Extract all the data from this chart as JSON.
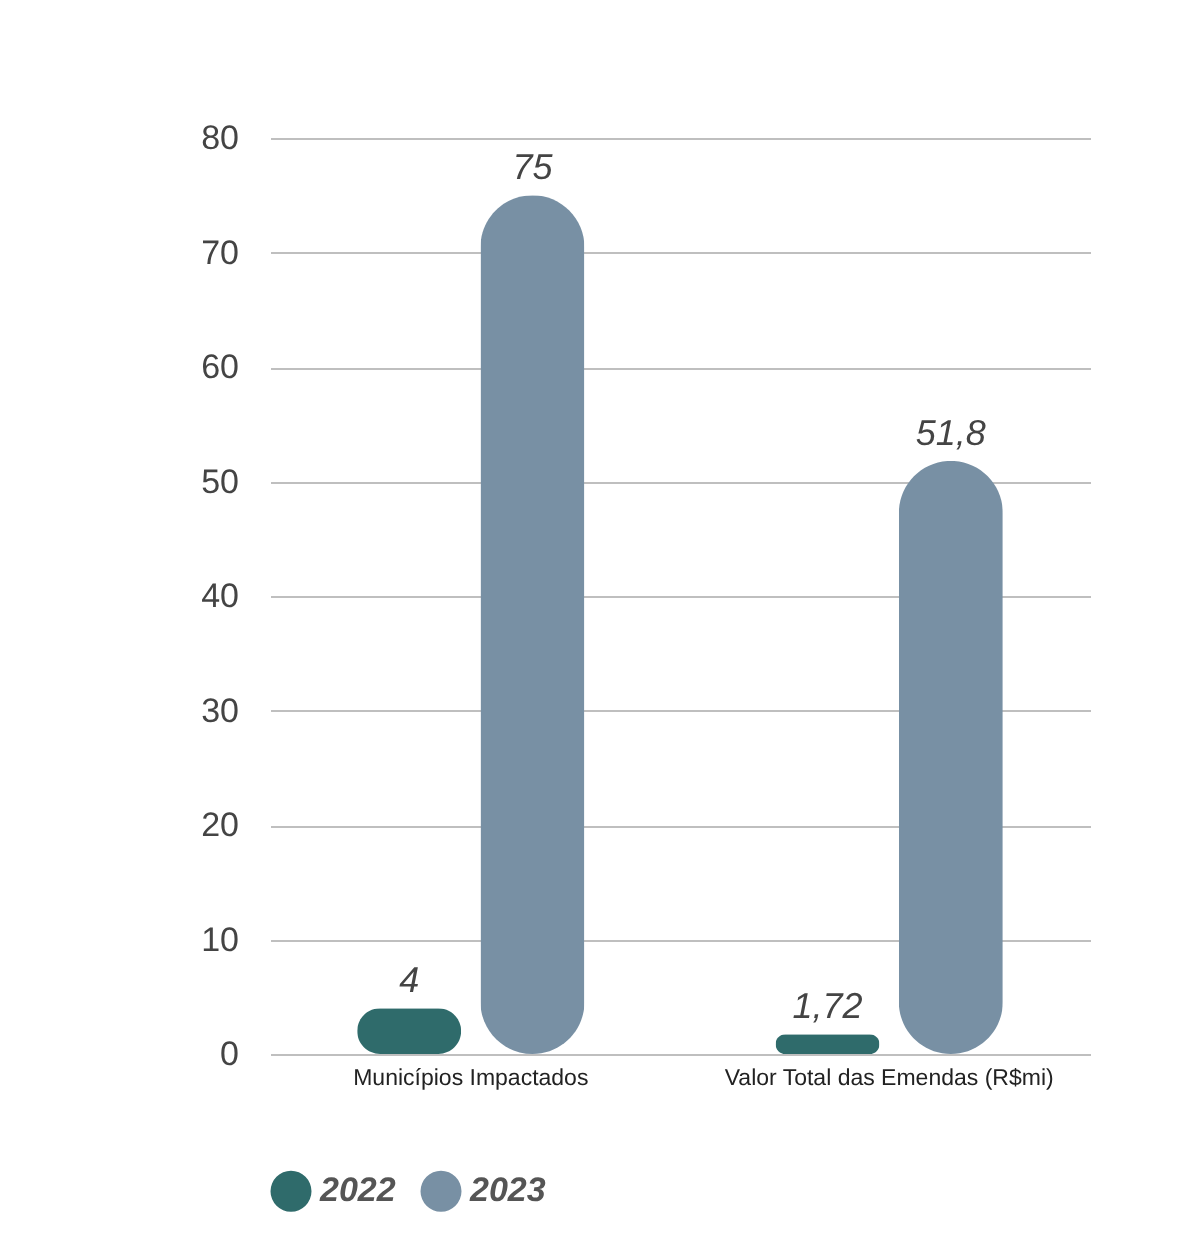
{
  "chart_data": {
    "type": "bar",
    "categories": [
      "Municípios Impactados",
      "Valor Total das Emendas (R$mi)"
    ],
    "series": [
      {
        "name": "2022",
        "color": "#2f6b6b",
        "values": [
          4,
          1.72
        ],
        "value_labels": [
          "4",
          "1,72"
        ]
      },
      {
        "name": "2023",
        "color": "#7890a4",
        "values": [
          75,
          51.8
        ],
        "value_labels": [
          "75",
          "51,8"
        ]
      }
    ],
    "ylim": [
      0,
      80
    ],
    "yticks": [
      0,
      10,
      20,
      30,
      40,
      50,
      60,
      70,
      80
    ],
    "grid": "y",
    "legend": "bottom"
  }
}
